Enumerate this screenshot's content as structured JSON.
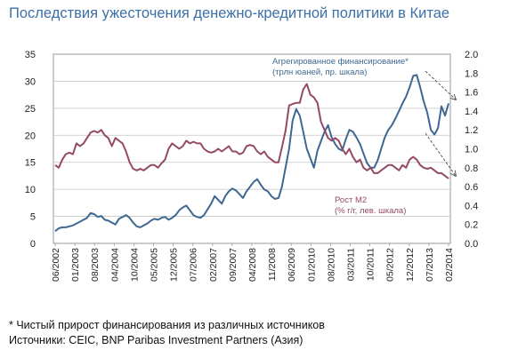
{
  "title": "Последствия ужесточения денежно-кредитной политики в Китае",
  "footnotes": {
    "note": "* Чистый прирост финансирования из различных источников",
    "sources": "Источники: CEIC, BNP Paribas Investment Partners (Азия)"
  },
  "chart_data": {
    "type": "line",
    "x_tick_labels": [
      "06/2002",
      "01/2003",
      "08/2003",
      "04/2004",
      "10/2004",
      "05/2005",
      "12/2005",
      "07/2006",
      "02/2007",
      "09/2007",
      "04/2008",
      "11/2008",
      "06/2009",
      "01/2010",
      "08/2010",
      "03/2011",
      "10/2011",
      "05/2012",
      "12/2012",
      "07/2013",
      "02/2014"
    ],
    "left_axis": {
      "ylim": [
        0,
        35
      ],
      "ticks": [
        0,
        5,
        10,
        15,
        20,
        25,
        30,
        35
      ]
    },
    "right_axis": {
      "ylim": [
        0.0,
        2.0
      ],
      "ticks": [
        "0.0",
        "0.2",
        "0.4",
        "0.6",
        "0.8",
        "1.0",
        "1.2",
        "1.4",
        "1.6",
        "1.8",
        "2.0"
      ]
    },
    "grid": "horizontal",
    "series": [
      {
        "name": "Агрегированное финансирование* (трлн юаней, пр. шкала)",
        "label_lines": [
          "Агрегированное финансирование*",
          "(трлн юаней, пр. шкала)"
        ],
        "axis": "right",
        "color": "#3e6891",
        "points": [
          [
            0,
            0.13
          ],
          [
            1,
            0.16
          ],
          [
            2,
            0.17
          ],
          [
            3,
            0.17
          ],
          [
            4,
            0.18
          ],
          [
            5,
            0.19
          ],
          [
            6,
            0.21
          ],
          [
            7,
            0.23
          ],
          [
            8,
            0.25
          ],
          [
            9,
            0.27
          ],
          [
            10,
            0.32
          ],
          [
            11,
            0.31
          ],
          [
            12,
            0.28
          ],
          [
            13,
            0.29
          ],
          [
            14,
            0.25
          ],
          [
            15,
            0.24
          ],
          [
            16,
            0.22
          ],
          [
            17,
            0.2
          ],
          [
            18,
            0.26
          ],
          [
            19,
            0.28
          ],
          [
            20,
            0.3
          ],
          [
            21,
            0.27
          ],
          [
            22,
            0.22
          ],
          [
            23,
            0.18
          ],
          [
            24,
            0.17
          ],
          [
            25,
            0.19
          ],
          [
            26,
            0.21
          ],
          [
            27,
            0.24
          ],
          [
            28,
            0.26
          ],
          [
            29,
            0.25
          ],
          [
            30,
            0.27
          ],
          [
            31,
            0.28
          ],
          [
            32,
            0.25
          ],
          [
            33,
            0.27
          ],
          [
            34,
            0.3
          ],
          [
            35,
            0.35
          ],
          [
            36,
            0.38
          ],
          [
            37,
            0.4
          ],
          [
            38,
            0.35
          ],
          [
            39,
            0.3
          ],
          [
            40,
            0.28
          ],
          [
            41,
            0.27
          ],
          [
            42,
            0.3
          ],
          [
            43,
            0.36
          ],
          [
            44,
            0.42
          ],
          [
            45,
            0.5
          ],
          [
            46,
            0.46
          ],
          [
            47,
            0.42
          ],
          [
            48,
            0.5
          ],
          [
            49,
            0.55
          ],
          [
            50,
            0.58
          ],
          [
            51,
            0.56
          ],
          [
            52,
            0.52
          ],
          [
            53,
            0.48
          ],
          [
            54,
            0.55
          ],
          [
            55,
            0.6
          ],
          [
            56,
            0.65
          ],
          [
            57,
            0.68
          ],
          [
            58,
            0.62
          ],
          [
            59,
            0.57
          ],
          [
            60,
            0.55
          ],
          [
            61,
            0.5
          ],
          [
            62,
            0.47
          ],
          [
            63,
            0.48
          ],
          [
            64,
            0.6
          ],
          [
            65,
            0.8
          ],
          [
            66,
            1.0
          ],
          [
            67,
            1.3
          ],
          [
            68,
            1.42
          ],
          [
            69,
            1.35
          ],
          [
            70,
            1.18
          ],
          [
            71,
            1.0
          ],
          [
            72,
            0.9
          ],
          [
            73,
            0.8
          ],
          [
            74,
            0.98
          ],
          [
            75,
            1.08
          ],
          [
            76,
            1.18
          ],
          [
            77,
            1.25
          ],
          [
            78,
            1.12
          ],
          [
            79,
            1.05
          ],
          [
            80,
            1.0
          ],
          [
            81,
            0.98
          ],
          [
            82,
            1.1
          ],
          [
            83,
            1.2
          ],
          [
            84,
            1.18
          ],
          [
            85,
            1.12
          ],
          [
            86,
            1.05
          ],
          [
            87,
            0.95
          ],
          [
            88,
            0.85
          ],
          [
            89,
            0.8
          ],
          [
            90,
            0.8
          ],
          [
            91,
            0.88
          ],
          [
            92,
            1.0
          ],
          [
            93,
            1.12
          ],
          [
            94,
            1.2
          ],
          [
            95,
            1.25
          ],
          [
            96,
            1.32
          ],
          [
            97,
            1.4
          ],
          [
            98,
            1.48
          ],
          [
            99,
            1.55
          ],
          [
            100,
            1.65
          ],
          [
            101,
            1.77
          ],
          [
            102,
            1.78
          ],
          [
            103,
            1.65
          ],
          [
            104,
            1.5
          ],
          [
            105,
            1.38
          ],
          [
            106,
            1.2
          ],
          [
            107,
            1.15
          ],
          [
            108,
            1.22
          ],
          [
            109,
            1.45
          ],
          [
            110,
            1.35
          ],
          [
            111,
            1.48
          ]
        ]
      },
      {
        "name": "Рост М2 (% г/г, лев. шкала)",
        "label_lines": [
          "Рост М2",
          "(% г/г, лев. шкала)"
        ],
        "axis": "left",
        "color": "#944a64",
        "points": [
          [
            0,
            14.5
          ],
          [
            1,
            14.0
          ],
          [
            2,
            15.5
          ],
          [
            3,
            16.5
          ],
          [
            4,
            16.8
          ],
          [
            5,
            16.5
          ],
          [
            6,
            18.5
          ],
          [
            7,
            18.0
          ],
          [
            8,
            18.5
          ],
          [
            9,
            19.5
          ],
          [
            10,
            20.5
          ],
          [
            11,
            20.8
          ],
          [
            12,
            20.5
          ],
          [
            13,
            21.0
          ],
          [
            14,
            20.0
          ],
          [
            15,
            19.5
          ],
          [
            16,
            18.0
          ],
          [
            17,
            19.5
          ],
          [
            18,
            19.0
          ],
          [
            19,
            18.5
          ],
          [
            20,
            17.0
          ],
          [
            21,
            15.0
          ],
          [
            22,
            13.8
          ],
          [
            23,
            13.5
          ],
          [
            24,
            13.8
          ],
          [
            25,
            13.5
          ],
          [
            26,
            14.0
          ],
          [
            27,
            14.5
          ],
          [
            28,
            14.5
          ],
          [
            29,
            14.0
          ],
          [
            30,
            14.8
          ],
          [
            31,
            15.5
          ],
          [
            32,
            17.5
          ],
          [
            33,
            18.5
          ],
          [
            34,
            18.0
          ],
          [
            35,
            17.5
          ],
          [
            36,
            18.0
          ],
          [
            37,
            19.0
          ],
          [
            38,
            18.5
          ],
          [
            39,
            18.8
          ],
          [
            40,
            18.5
          ],
          [
            41,
            18.5
          ],
          [
            42,
            17.5
          ],
          [
            43,
            17.0
          ],
          [
            44,
            16.8
          ],
          [
            45,
            17.0
          ],
          [
            46,
            17.5
          ],
          [
            47,
            17.0
          ],
          [
            48,
            17.5
          ],
          [
            49,
            18.0
          ],
          [
            50,
            17.0
          ],
          [
            51,
            17.0
          ],
          [
            52,
            16.5
          ],
          [
            53,
            16.8
          ],
          [
            54,
            18.0
          ],
          [
            55,
            18.2
          ],
          [
            56,
            18.0
          ],
          [
            57,
            17.0
          ],
          [
            58,
            16.5
          ],
          [
            59,
            17.0
          ],
          [
            60,
            16.0
          ],
          [
            61,
            15.5
          ],
          [
            62,
            15.0
          ],
          [
            63,
            15.0
          ],
          [
            64,
            17.8
          ],
          [
            65,
            20.8
          ],
          [
            66,
            25.5
          ],
          [
            67,
            25.8
          ],
          [
            68,
            26.0
          ],
          [
            69,
            26.0
          ],
          [
            70,
            28.5
          ],
          [
            71,
            29.5
          ],
          [
            72,
            27.5
          ],
          [
            73,
            27.0
          ],
          [
            74,
            26.0
          ],
          [
            75,
            22.5
          ],
          [
            76,
            21.0
          ],
          [
            77,
            19.5
          ],
          [
            78,
            19.0
          ],
          [
            79,
            19.5
          ],
          [
            80,
            19.0
          ],
          [
            81,
            17.5
          ],
          [
            82,
            16.5
          ],
          [
            83,
            17.5
          ],
          [
            84,
            16.0
          ],
          [
            85,
            15.0
          ],
          [
            86,
            15.5
          ],
          [
            87,
            14.0
          ],
          [
            88,
            13.5
          ],
          [
            89,
            14.0
          ],
          [
            90,
            13.0
          ],
          [
            91,
            13.0
          ],
          [
            92,
            13.5
          ],
          [
            93,
            14.0
          ],
          [
            94,
            14.5
          ],
          [
            95,
            14.5
          ],
          [
            96,
            14.0
          ],
          [
            97,
            13.5
          ],
          [
            98,
            14.5
          ],
          [
            99,
            14.0
          ],
          [
            100,
            15.5
          ],
          [
            101,
            16.0
          ],
          [
            102,
            15.5
          ],
          [
            103,
            14.5
          ],
          [
            104,
            14.0
          ],
          [
            105,
            13.8
          ],
          [
            106,
            14.0
          ],
          [
            107,
            13.5
          ],
          [
            108,
            13.0
          ],
          [
            109,
            13.0
          ],
          [
            110,
            12.5
          ],
          [
            111,
            12.0
          ]
        ]
      }
    ]
  }
}
